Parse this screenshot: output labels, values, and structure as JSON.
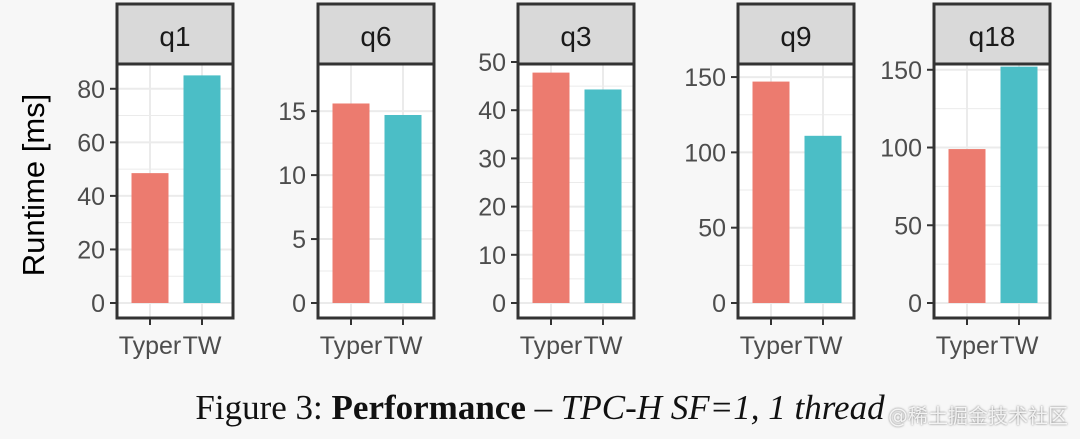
{
  "chart_data": {
    "type": "bar",
    "ylabel": "Runtime [ms]",
    "xlabel": "",
    "legend": "none",
    "grid": true,
    "categories": [
      "Typer",
      "TW"
    ],
    "colors": {
      "Typer": "#ec7b6f",
      "TW": "#4bbec6"
    },
    "panels": [
      {
        "name": "q1",
        "values": [
          48.5,
          85
        ],
        "ylim": [
          0,
          90
        ],
        "ticks": [
          0,
          20,
          40,
          60,
          80
        ]
      },
      {
        "name": "q6",
        "values": [
          15.6,
          14.7
        ],
        "ylim": [
          0,
          19
        ],
        "ticks": [
          0,
          5,
          10,
          15
        ]
      },
      {
        "name": "q3",
        "values": [
          47.8,
          44.3
        ],
        "ylim": [
          0,
          50
        ],
        "ticks": [
          0,
          10,
          20,
          30,
          40,
          50
        ]
      },
      {
        "name": "q9",
        "values": [
          147,
          111
        ],
        "ylim": [
          0,
          160
        ],
        "ticks": [
          0,
          50,
          100,
          150
        ]
      },
      {
        "name": "q18",
        "values": [
          99,
          152
        ],
        "ylim": [
          0,
          155
        ],
        "ticks": [
          0,
          50,
          100,
          150
        ]
      }
    ]
  },
  "caption": {
    "label": "Figure 3:",
    "title": "Performance",
    "separator": "–",
    "detail": "TPC-H SF=1, 1 thread"
  },
  "watermark": "@稀土掘金技术社区",
  "colors": {
    "panel_background": "#ffffff",
    "grid": "#ebebeb",
    "strip_background": "#d9d9d9",
    "border": "#333333",
    "tick_text": "#4d4d4d",
    "axis_title": "#000000"
  }
}
